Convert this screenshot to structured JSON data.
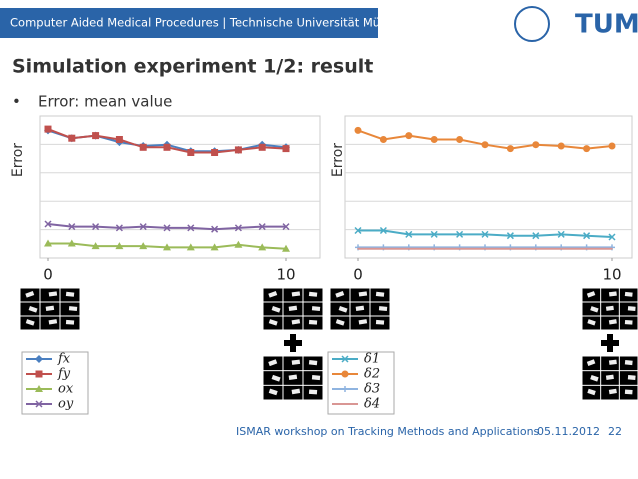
{
  "header": {
    "institute": "Computer Aided Medical Procedures | Technische Universität München",
    "logo": "TUM"
  },
  "title": "Simulation experiment 1/2: result",
  "bullet": "Error: mean value",
  "footer": {
    "event": "ISMAR workshop on Tracking Methods and Applications",
    "date": "05.11.2012",
    "page": "22"
  },
  "chart_data": [
    {
      "type": "line",
      "ylabel": "Error",
      "x": [
        0,
        1,
        2,
        3,
        4,
        5,
        6,
        7,
        8,
        9,
        10
      ],
      "xlim": [
        0,
        10
      ],
      "xticks": [
        0,
        10
      ],
      "ylim": [
        0,
        100
      ],
      "grid": true,
      "series": [
        {
          "name": "fx",
          "color": "#4a7fc0",
          "marker": "diamond",
          "values": [
            92,
            86,
            88,
            83,
            80,
            81,
            76,
            76,
            77,
            81,
            79
          ]
        },
        {
          "name": "fy",
          "color": "#c0504d",
          "marker": "square",
          "values": [
            93,
            86,
            88,
            85,
            79,
            79,
            75,
            75,
            77,
            79,
            78
          ]
        },
        {
          "name": "ox",
          "color": "#9bbb59",
          "marker": "triangle",
          "values": [
            5,
            5,
            3,
            3,
            3,
            2,
            2,
            2,
            4,
            2,
            1
          ]
        },
        {
          "name": "oy",
          "color": "#8064a2",
          "marker": "x",
          "values": [
            20,
            18,
            18,
            17,
            18,
            17,
            17,
            16,
            17,
            18,
            18
          ]
        }
      ]
    },
    {
      "type": "line",
      "ylabel": "Error",
      "x": [
        0,
        1,
        2,
        3,
        4,
        5,
        6,
        7,
        8,
        9,
        10
      ],
      "xlim": [
        0,
        10
      ],
      "xticks": [
        0,
        10
      ],
      "ylim": [
        0,
        100
      ],
      "grid": true,
      "series": [
        {
          "name": "δ1",
          "color": "#4bacc6",
          "marker": "x",
          "values": [
            15,
            15,
            12,
            12,
            12,
            12,
            11,
            11,
            12,
            11,
            10
          ]
        },
        {
          "name": "δ2",
          "color": "#e8873a",
          "marker": "circle",
          "values": [
            92,
            85,
            88,
            85,
            85,
            81,
            78,
            81,
            80,
            78,
            80
          ]
        },
        {
          "name": "δ3",
          "color": "#8fb4e0",
          "marker": "plus",
          "values": [
            2,
            2,
            2,
            2,
            2,
            2,
            2,
            2,
            2,
            2,
            2
          ]
        },
        {
          "name": "δ4",
          "color": "#d99694",
          "marker": "none",
          "values": [
            1,
            1,
            1,
            1,
            1,
            1,
            1,
            1,
            1,
            1,
            1
          ]
        }
      ]
    }
  ]
}
